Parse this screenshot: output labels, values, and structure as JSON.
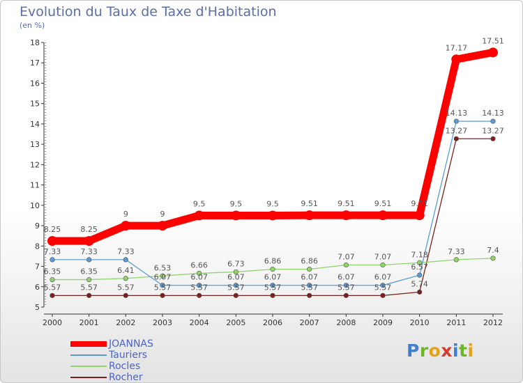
{
  "header": {
    "title": "Evolution du Taux de Taxe d'Habitation",
    "subtitle": "(en %)"
  },
  "logo": {
    "text": "Proxiti",
    "letters": [
      {
        "ch": "P",
        "color": "#3f7fd0"
      },
      {
        "ch": "r",
        "color": "#6cb72a"
      },
      {
        "ch": "o",
        "color": "#e8a21a"
      },
      {
        "ch": "x",
        "color": "#d83a2c"
      },
      {
        "ch": "i",
        "color": "#3f7fd0"
      },
      {
        "ch": "t",
        "color": "#6cb72a"
      },
      {
        "ch": "i",
        "color": "#e8a21a"
      }
    ]
  },
  "chart_data": {
    "type": "line",
    "title": "Evolution du Taux de Taxe d'Habitation",
    "subtitle": "(en %)",
    "xlabel": "",
    "ylabel": "",
    "x": [
      "2000",
      "2001",
      "2002",
      "2003",
      "2004",
      "2005",
      "2006",
      "2007",
      "2008",
      "2009",
      "2010",
      "2011",
      "2012"
    ],
    "ylim": [
      5,
      18
    ],
    "yticks": [
      5,
      6,
      7,
      8,
      9,
      10,
      11,
      12,
      13,
      14,
      15,
      16,
      17,
      18
    ],
    "grid": false,
    "legend_position": "bottom-left",
    "series": [
      {
        "name": "JOANNAS",
        "color": "#ff0000",
        "values": [
          8.25,
          8.25,
          9,
          9,
          9.5,
          9.5,
          9.5,
          9.51,
          9.51,
          9.51,
          9.51,
          17.17,
          17.51
        ],
        "labels": [
          "8.25",
          "8.25",
          "9",
          "9",
          "9.5",
          "9.5",
          "9.5",
          "9.51",
          "9.51",
          "9.51",
          "9.51",
          "17.17",
          "17.51"
        ]
      },
      {
        "name": "Tauriers",
        "color": "#5b9bd5",
        "values": [
          7.33,
          7.33,
          7.33,
          6.07,
          6.07,
          6.07,
          6.07,
          6.07,
          6.07,
          6.07,
          6.57,
          14.13,
          14.13
        ],
        "labels": [
          "7.33",
          "7.33",
          "7.33",
          "6.07",
          "6.07",
          "6.07",
          "6.07",
          "6.07",
          "6.07",
          "6.07",
          "6.57",
          "14.13",
          "14.13"
        ]
      },
      {
        "name": "Rocles",
        "color": "#8fd46a",
        "values": [
          6.35,
          6.35,
          6.41,
          6.53,
          6.66,
          6.73,
          6.86,
          6.86,
          7.07,
          7.07,
          7.18,
          7.33,
          7.4
        ],
        "labels": [
          "6.35",
          "6.35",
          "6.41",
          "6.53",
          "6.66",
          "6.73",
          "6.86",
          "6.86",
          "7.07",
          "7.07",
          "7.18",
          "7.33",
          "7.4"
        ]
      },
      {
        "name": "Rocher",
        "color": "#7a1f1f",
        "values": [
          5.57,
          5.57,
          5.57,
          5.57,
          5.57,
          5.57,
          5.57,
          5.57,
          5.57,
          5.57,
          5.74,
          13.27,
          13.27
        ],
        "labels": [
          "5.57",
          "5.57",
          "5.57",
          "5.57",
          "5.57",
          "5.57",
          "5.57",
          "5.57",
          "5.57",
          "5.57",
          "5.74",
          "13.27",
          "13.27"
        ]
      }
    ]
  }
}
